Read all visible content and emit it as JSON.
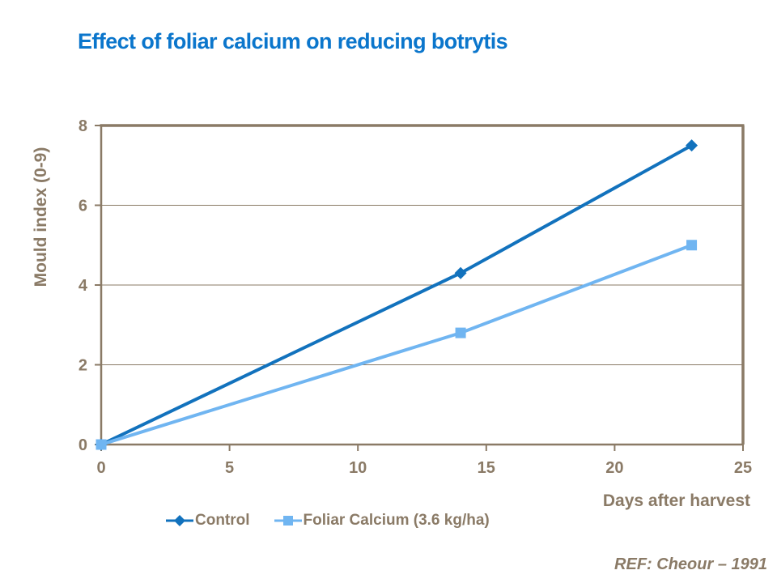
{
  "title": {
    "text": "Effect of foliar calcium on reducing botrytis",
    "color": "#0b76cc"
  },
  "footer": {
    "ref_text": "REF: Cheour – 1991"
  },
  "colors": {
    "axis_brown": "#8a7a66",
    "grid_brown": "#8a7a66",
    "background": "#ffffff"
  },
  "chart_data": {
    "type": "line",
    "title": "Effect of foliar calcium on reducing botrytis",
    "xlabel": "Days after harvest",
    "ylabel": "Mould index (0-9)",
    "xlim": [
      0,
      25
    ],
    "ylim": [
      0,
      8
    ],
    "xticks": [
      0,
      5,
      10,
      15,
      20,
      25
    ],
    "yticks": [
      0,
      2,
      4,
      6,
      8
    ],
    "grid": "horizontal",
    "legend_position": "bottom",
    "series": [
      {
        "name": "Control",
        "marker": "diamond",
        "color": "#1272bd",
        "x": [
          0,
          14,
          23
        ],
        "y": [
          0,
          4.3,
          7.5
        ]
      },
      {
        "name": "Foliar Calcium (3.6 kg/ha)",
        "marker": "square",
        "color": "#70b5f1",
        "x": [
          0,
          14,
          23
        ],
        "y": [
          0,
          2.8,
          5.0
        ]
      }
    ]
  }
}
